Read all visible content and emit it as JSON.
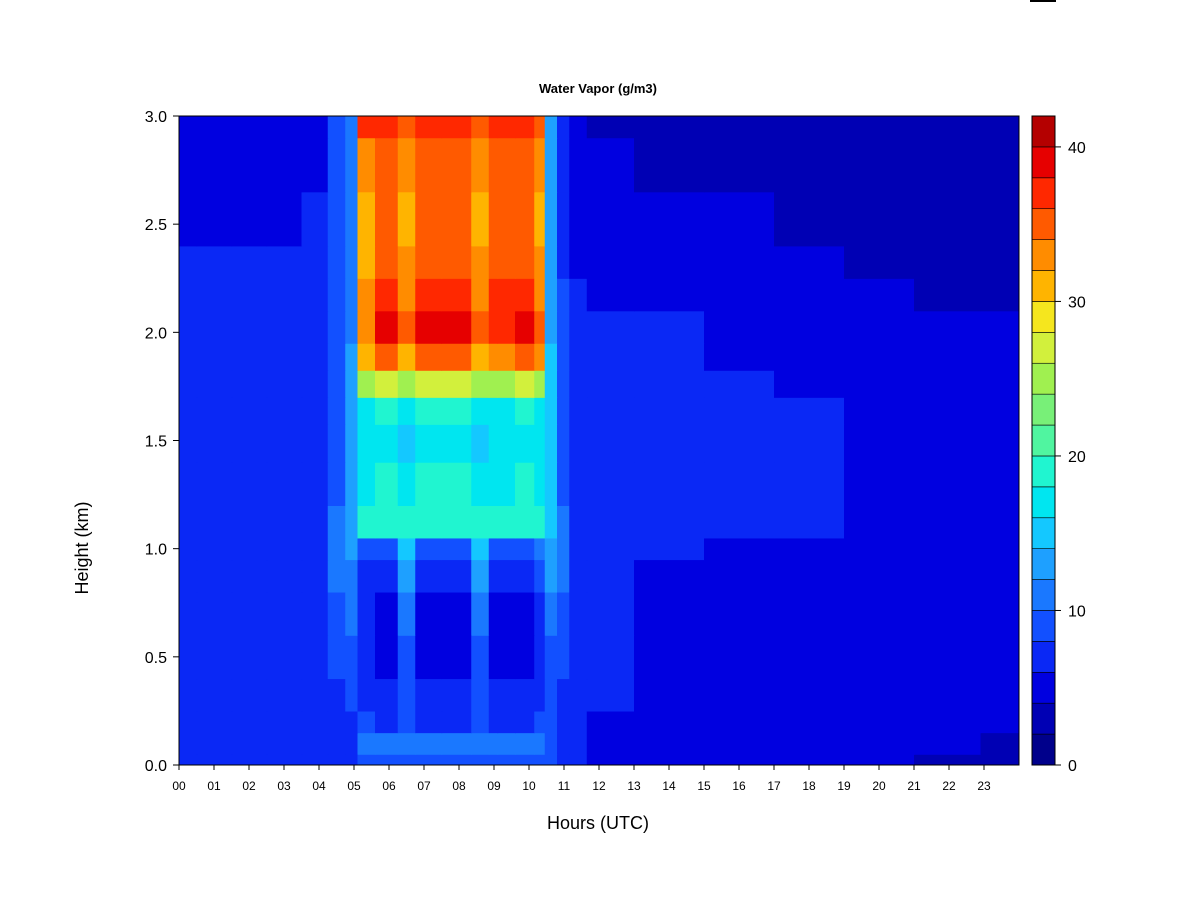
{
  "chart_data": {
    "type": "heatmap",
    "title": "Water Vapor (g/m3)",
    "xlabel": "Hours (UTC)",
    "ylabel": "Height (km)",
    "x_ticks": [
      "00",
      "01",
      "02",
      "03",
      "04",
      "05",
      "06",
      "07",
      "08",
      "09",
      "10",
      "11",
      "12",
      "13",
      "14",
      "15",
      "16",
      "17",
      "18",
      "19",
      "20",
      "21",
      "22",
      "23"
    ],
    "y_ticks": [
      "0.0",
      "0.5",
      "1.0",
      "1.5",
      "2.0",
      "2.5",
      "3.0"
    ],
    "xlim": [
      0,
      24
    ],
    "ylim": [
      0,
      3.0
    ],
    "colorbar": {
      "range": [
        0,
        42
      ],
      "tick_labels": [
        "0",
        "10",
        "20",
        "30",
        "40"
      ],
      "tick_values": [
        0,
        10,
        20,
        30,
        40
      ],
      "levels": [
        0,
        2,
        4,
        6,
        8,
        10,
        12,
        14,
        16,
        18,
        20,
        22,
        24,
        26,
        28,
        30,
        32,
        34,
        36,
        38,
        40,
        42
      ],
      "colors": [
        "#00008b",
        "#0000b4",
        "#0000e0",
        "#0a28f5",
        "#1250ff",
        "#1a78ff",
        "#1ea0ff",
        "#14c8ff",
        "#00e6f0",
        "#20f5d0",
        "#50f5a0",
        "#78f078",
        "#a0f050",
        "#d2f03c",
        "#f5e61e",
        "#ffb400",
        "#ff8c00",
        "#ff5a00",
        "#ff2800",
        "#e60000",
        "#b40000",
        "#8b0000"
      ]
    },
    "x_grid_hours": [
      0,
      1,
      2,
      3,
      4,
      4.5,
      5,
      5.2,
      6,
      6.5,
      7,
      8,
      8.7,
      9,
      9.2,
      10,
      10.3,
      10.6,
      11,
      11.3,
      12,
      14,
      16,
      18,
      20,
      22,
      23.8
    ],
    "y_grid_km": [
      0,
      0.1,
      0.2,
      0.3,
      0.5,
      0.7,
      0.9,
      1.0,
      1.1,
      1.3,
      1.5,
      1.65,
      1.75,
      1.9,
      2.0,
      2.2,
      2.3,
      2.5,
      2.8,
      3.0
    ],
    "values": [
      [
        6,
        6,
        6,
        6,
        6,
        7,
        7,
        8,
        8,
        8,
        8,
        8,
        8,
        8,
        8,
        8,
        8,
        8,
        7,
        6,
        5,
        4,
        4,
        4,
        4,
        3,
        3
      ],
      [
        6,
        6,
        6,
        6,
        6,
        7,
        7,
        11,
        11,
        11,
        11,
        11,
        11,
        11,
        11,
        11,
        11,
        8,
        7,
        6,
        5,
        4,
        4,
        4,
        4,
        4,
        3
      ],
      [
        6,
        6,
        6,
        6,
        6,
        7,
        7,
        8,
        7,
        8,
        7,
        7,
        8,
        7,
        7,
        7,
        8,
        8,
        7,
        6,
        5,
        5,
        4,
        4,
        4,
        4,
        4
      ],
      [
        6,
        6,
        6,
        6,
        6,
        7,
        8,
        7,
        6,
        8,
        6,
        6,
        8,
        6,
        6,
        6,
        7,
        8,
        7,
        6,
        6,
        5,
        5,
        5,
        5,
        5,
        5
      ],
      [
        6,
        6,
        6,
        6,
        6,
        8,
        9,
        6,
        5,
        8,
        5,
        5,
        8,
        5,
        5,
        5,
        6,
        8,
        8,
        6,
        6,
        5,
        5,
        5,
        5,
        5,
        5
      ],
      [
        6,
        6,
        6,
        6,
        6,
        9,
        10,
        6,
        5,
        10,
        5,
        5,
        10,
        5,
        5,
        5,
        7,
        10,
        9,
        6,
        6,
        5,
        5,
        5,
        5,
        5,
        5
      ],
      [
        6,
        6,
        6,
        6,
        7,
        10,
        11,
        7,
        6,
        12,
        6,
        6,
        12,
        6,
        6,
        6,
        8,
        12,
        10,
        7,
        6,
        5,
        5,
        5,
        5,
        5,
        5
      ],
      [
        6,
        6,
        6,
        6,
        7,
        11,
        12,
        9,
        8,
        14,
        8,
        8,
        14,
        8,
        8,
        8,
        10,
        13,
        10,
        7,
        6,
        6,
        5,
        5,
        5,
        5,
        5
      ],
      [
        7,
        7,
        7,
        7,
        7,
        10,
        13,
        18,
        19,
        19,
        19,
        19,
        19,
        18,
        18,
        19,
        18,
        14,
        10,
        7,
        6,
        6,
        6,
        6,
        5,
        5,
        5
      ],
      [
        7,
        7,
        7,
        7,
        7,
        9,
        13,
        17,
        18,
        16,
        18,
        18,
        16,
        17,
        17,
        18,
        17,
        14,
        9,
        7,
        6,
        6,
        6,
        6,
        5,
        5,
        5
      ],
      [
        7,
        7,
        7,
        7,
        7,
        9,
        13,
        16,
        17,
        15,
        17,
        17,
        15,
        16,
        16,
        17,
        16,
        14,
        9,
        7,
        6,
        6,
        6,
        6,
        5,
        5,
        5
      ],
      [
        7,
        7,
        7,
        7,
        7,
        9,
        12,
        17,
        18,
        16,
        18,
        18,
        16,
        17,
        17,
        18,
        16,
        14,
        9,
        7,
        6,
        6,
        6,
        6,
        5,
        5,
        4
      ],
      [
        7,
        7,
        7,
        7,
        7,
        8,
        12,
        25,
        26,
        24,
        26,
        26,
        24,
        25,
        25,
        26,
        25,
        14,
        9,
        7,
        6,
        6,
        6,
        5,
        5,
        4,
        4
      ],
      [
        7,
        7,
        7,
        7,
        7,
        8,
        12,
        30,
        34,
        30,
        34,
        34,
        30,
        33,
        33,
        34,
        32,
        14,
        8,
        6,
        6,
        6,
        5,
        5,
        4,
        4,
        4
      ],
      [
        6,
        6,
        6,
        6,
        6,
        8,
        11,
        33,
        38,
        34,
        38,
        38,
        34,
        37,
        37,
        38,
        34,
        13,
        8,
        6,
        6,
        6,
        5,
        5,
        4,
        4,
        4
      ],
      [
        6,
        6,
        6,
        6,
        6,
        8,
        11,
        32,
        37,
        33,
        37,
        37,
        33,
        36,
        36,
        37,
        33,
        13,
        8,
        6,
        5,
        5,
        5,
        4,
        4,
        3,
        3
      ],
      [
        6,
        6,
        6,
        6,
        6,
        8,
        11,
        31,
        35,
        32,
        35,
        35,
        32,
        35,
        35,
        35,
        32,
        12,
        7,
        5,
        5,
        5,
        4,
        4,
        3,
        3,
        3
      ],
      [
        5,
        5,
        5,
        5,
        6,
        8,
        11,
        31,
        34,
        31,
        34,
        34,
        31,
        34,
        34,
        34,
        31,
        12,
        7,
        5,
        5,
        4,
        4,
        3,
        3,
        3,
        3
      ],
      [
        4,
        4,
        4,
        4,
        5,
        8,
        11,
        33,
        34,
        32,
        34,
        34,
        32,
        34,
        34,
        34,
        32,
        12,
        6,
        4,
        4,
        3,
        3,
        3,
        3,
        3,
        3
      ],
      [
        4,
        4,
        4,
        4,
        5,
        8,
        11,
        36,
        36,
        35,
        36,
        36,
        35,
        36,
        36,
        36,
        34,
        12,
        6,
        4,
        3,
        3,
        3,
        3,
        3,
        3,
        3
      ]
    ]
  }
}
